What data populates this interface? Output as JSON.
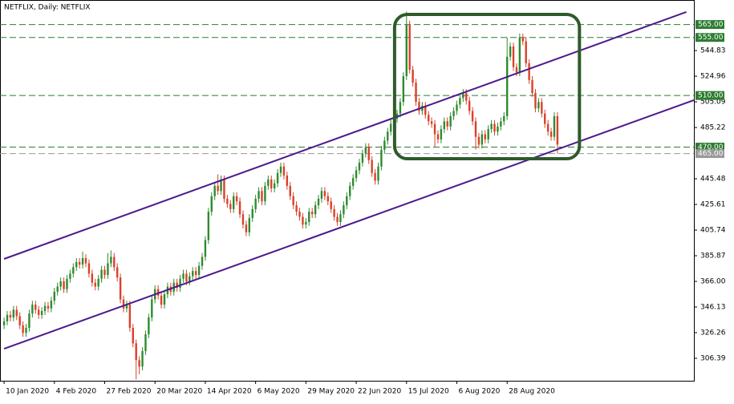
{
  "chart_data": {
    "type": "candlestick",
    "title": "NETFLIX, Daily:  NETFLIX",
    "categories": [
      "10 Jan 2020",
      null,
      null,
      null,
      null,
      null,
      null,
      null,
      null,
      null,
      null,
      null,
      null,
      null,
      null,
      null,
      "4 Feb 2020",
      null,
      null,
      null,
      null,
      null,
      null,
      null,
      null,
      null,
      null,
      null,
      null,
      null,
      null,
      null,
      "27 Feb 2020",
      null,
      null,
      null,
      null,
      null,
      null,
      null,
      null,
      null,
      null,
      null,
      null,
      null,
      null,
      null,
      "20 Mar 2020",
      null,
      null,
      null,
      null,
      null,
      null,
      null,
      null,
      null,
      null,
      null,
      null,
      null,
      null,
      null,
      "14 Apr 2020",
      null,
      null,
      null,
      null,
      null,
      null,
      null,
      null,
      null,
      null,
      null,
      null,
      null,
      null,
      null,
      "6 May 2020",
      null,
      null,
      null,
      null,
      null,
      null,
      null,
      null,
      null,
      null,
      null,
      null,
      null,
      null,
      null,
      "29 May 2020",
      null,
      null,
      null,
      null,
      null,
      null,
      null,
      null,
      null,
      null,
      null,
      null,
      null,
      null,
      null,
      "22 Jun 2020",
      null,
      null,
      null,
      null,
      null,
      null,
      null,
      null,
      null,
      null,
      null,
      null,
      null,
      null,
      null,
      "15 Jul 2020",
      null,
      null,
      null,
      null,
      null,
      null,
      null,
      null,
      null,
      null,
      null,
      null,
      null,
      null,
      null,
      "6 Aug 2020",
      null,
      null,
      null,
      null,
      null,
      null,
      null,
      null,
      null,
      null,
      null,
      null,
      null,
      null,
      null,
      "28 Aug 2020",
      null,
      null,
      null,
      null,
      null,
      null,
      null,
      null,
      null,
      null,
      null,
      null,
      null,
      null,
      null,
      null
    ],
    "open": [
      332,
      335,
      340,
      338,
      344,
      339,
      332,
      326,
      330,
      341,
      348,
      344,
      340,
      343,
      347,
      345,
      351,
      358,
      362,
      366,
      360,
      368,
      372,
      377,
      381,
      379,
      384,
      380,
      372,
      365,
      362,
      368,
      375,
      371,
      380,
      385,
      377,
      369,
      352,
      345,
      348,
      330,
      318,
      305,
      300,
      312,
      325,
      338,
      352,
      360,
      355,
      348,
      356,
      362,
      358,
      365,
      361,
      368,
      372,
      366,
      370,
      374,
      371,
      378,
      385,
      398,
      420,
      432,
      440,
      436,
      445,
      430,
      426,
      422,
      432,
      428,
      418,
      410,
      404,
      415,
      422,
      430,
      436,
      428,
      440,
      445,
      438,
      442,
      450,
      455,
      448,
      440,
      432,
      425,
      420,
      416,
      410,
      412,
      420,
      418,
      425,
      430,
      436,
      432,
      428,
      422,
      416,
      412,
      418,
      425,
      432,
      440,
      446,
      452,
      458,
      465,
      470,
      460,
      450,
      444,
      455,
      468,
      475,
      482,
      488,
      492,
      496,
      505,
      525,
      565,
      530,
      520,
      505,
      498,
      502,
      495,
      490,
      488,
      480,
      476,
      484,
      490,
      486,
      494,
      498,
      503,
      508,
      512,
      506,
      498,
      490,
      478,
      472,
      480,
      476,
      484,
      488,
      482,
      486,
      490,
      494,
      540,
      548,
      532,
      528,
      555,
      552,
      535,
      522,
      512,
      500,
      505,
      496,
      488,
      482,
      478,
      494
    ],
    "high": [
      338,
      343,
      343,
      347,
      347,
      342,
      335,
      333,
      344,
      351,
      351,
      347,
      346,
      350,
      350,
      354,
      361,
      365,
      369,
      369,
      371,
      375,
      380,
      384,
      384,
      389,
      387,
      383,
      375,
      368,
      371,
      378,
      378,
      388,
      390,
      388,
      380,
      372,
      355,
      351,
      351,
      333,
      321,
      308,
      315,
      328,
      341,
      355,
      363,
      363,
      358,
      359,
      365,
      365,
      368,
      368,
      371,
      375,
      375,
      373,
      377,
      377,
      381,
      388,
      401,
      423,
      435,
      443,
      449,
      448,
      448,
      433,
      429,
      435,
      435,
      431,
      421,
      413,
      418,
      425,
      433,
      439,
      439,
      443,
      448,
      448,
      445,
      453,
      458,
      458,
      451,
      443,
      435,
      428,
      423,
      419,
      415,
      423,
      423,
      428,
      433,
      439,
      439,
      435,
      431,
      425,
      419,
      421,
      428,
      435,
      443,
      449,
      455,
      461,
      468,
      473,
      473,
      463,
      453,
      458,
      471,
      478,
      485,
      491,
      495,
      499,
      508,
      528,
      575,
      568,
      533,
      523,
      508,
      505,
      505,
      498,
      493,
      491,
      483,
      487,
      493,
      493,
      497,
      501,
      506,
      511,
      515,
      515,
      509,
      501,
      493,
      481,
      483,
      483,
      487,
      491,
      491,
      489,
      493,
      497,
      555,
      551,
      551,
      535,
      558,
      558,
      555,
      538,
      525,
      515,
      508,
      508,
      499,
      491,
      485,
      497,
      497
    ],
    "low": [
      329,
      332,
      335,
      335,
      336,
      329,
      323,
      323,
      327,
      338,
      341,
      337,
      337,
      340,
      342,
      342,
      348,
      355,
      359,
      357,
      357,
      365,
      369,
      374,
      376,
      376,
      377,
      369,
      362,
      359,
      359,
      365,
      368,
      368,
      377,
      374,
      366,
      349,
      342,
      342,
      327,
      315,
      290,
      294,
      297,
      309,
      322,
      335,
      349,
      352,
      345,
      345,
      353,
      355,
      355,
      358,
      358,
      365,
      363,
      363,
      367,
      368,
      368,
      375,
      382,
      395,
      417,
      429,
      433,
      433,
      427,
      423,
      419,
      419,
      425,
      415,
      407,
      401,
      401,
      412,
      419,
      427,
      425,
      425,
      437,
      435,
      435,
      439,
      447,
      445,
      437,
      429,
      422,
      417,
      413,
      407,
      407,
      409,
      415,
      415,
      422,
      427,
      429,
      425,
      419,
      413,
      409,
      409,
      415,
      422,
      429,
      437,
      443,
      449,
      455,
      462,
      457,
      447,
      441,
      441,
      452,
      465,
      472,
      479,
      485,
      489,
      493,
      502,
      522,
      527,
      517,
      502,
      495,
      495,
      492,
      487,
      485,
      470,
      473,
      473,
      481,
      483,
      483,
      491,
      495,
      500,
      505,
      503,
      495,
      487,
      468,
      469,
      469,
      473,
      473,
      481,
      479,
      479,
      483,
      487,
      491,
      537,
      529,
      525,
      525,
      549,
      532,
      519,
      509,
      497,
      497,
      493,
      485,
      479,
      475,
      475,
      465
    ],
    "close": [
      335,
      340,
      338,
      344,
      339,
      332,
      326,
      330,
      341,
      348,
      344,
      340,
      343,
      347,
      345,
      351,
      358,
      362,
      366,
      360,
      368,
      372,
      377,
      381,
      379,
      384,
      380,
      372,
      365,
      362,
      368,
      375,
      371,
      380,
      385,
      377,
      369,
      352,
      345,
      348,
      330,
      318,
      305,
      300,
      312,
      325,
      338,
      352,
      360,
      355,
      348,
      356,
      362,
      358,
      365,
      361,
      368,
      372,
      366,
      370,
      374,
      371,
      378,
      385,
      398,
      420,
      432,
      440,
      436,
      445,
      430,
      426,
      422,
      432,
      428,
      418,
      410,
      404,
      415,
      422,
      430,
      436,
      428,
      440,
      445,
      438,
      442,
      450,
      455,
      448,
      440,
      432,
      425,
      420,
      416,
      410,
      412,
      420,
      418,
      425,
      430,
      436,
      432,
      428,
      422,
      416,
      412,
      418,
      425,
      432,
      440,
      446,
      452,
      458,
      465,
      470,
      460,
      450,
      444,
      455,
      468,
      475,
      482,
      488,
      492,
      496,
      505,
      525,
      565,
      530,
      520,
      505,
      498,
      502,
      495,
      490,
      488,
      480,
      476,
      484,
      490,
      486,
      494,
      498,
      503,
      508,
      512,
      506,
      498,
      490,
      478,
      472,
      480,
      476,
      484,
      488,
      482,
      486,
      490,
      494,
      540,
      548,
      532,
      528,
      555,
      552,
      535,
      522,
      512,
      500,
      505,
      496,
      488,
      482,
      478,
      494,
      472
    ],
    "up_color": "#2e8b2e",
    "down_color": "#d9412a",
    "xlim": [
      -1.3,
      219.4
    ],
    "ylim": [
      289.0,
      584.0
    ],
    "yticks": [
      306.39,
      326.26,
      346.13,
      {
        "value": 366,
        "label": "366.00"
      },
      385.87,
      405.74,
      425.61,
      445.48,
      485.22,
      505.09,
      524.96,
      544.83
    ],
    "levels": [
      {
        "value": 565,
        "label": "565.00",
        "color": "#2e7d32"
      },
      {
        "value": 555,
        "label": "555.00",
        "color": "#2e7d32"
      },
      {
        "value": 510,
        "label": "510.00",
        "color": "#2e7d32"
      },
      {
        "value": 470,
        "label": "470.00",
        "color": "#2e7d32"
      },
      {
        "value": 465,
        "label": "465.00",
        "color": "#9a9a9a"
      }
    ],
    "lines": [
      {
        "x": [
          0,
          217
        ],
        "y": [
          383.4,
          574.7
        ],
        "color": "#4b1a8c"
      },
      {
        "x": [
          0,
          219.4
        ],
        "y": [
          313.8,
          506.4
        ],
        "color": "#4b1a8c"
      }
    ],
    "box": {
      "x": [
        124.2,
        183
      ],
      "y": [
        461,
        572.8
      ],
      "color": "#2f5a2a"
    }
  }
}
